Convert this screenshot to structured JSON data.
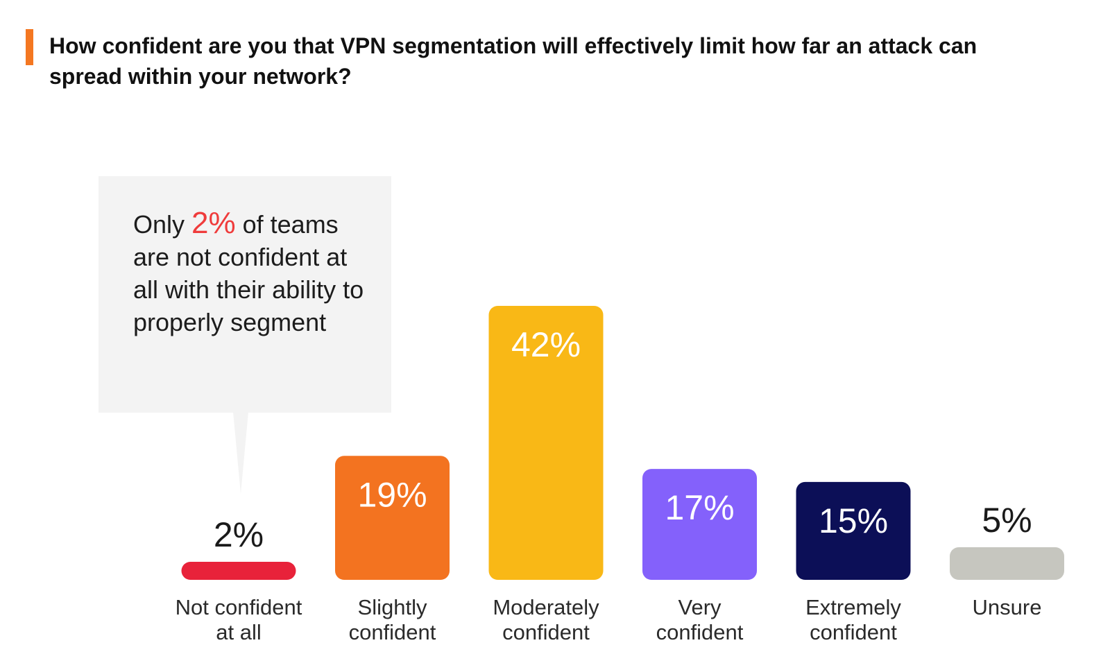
{
  "title": "How confident are you that VPN segmentation will effectively limit how far an attack can spread within your network?",
  "callout": {
    "before": "Only ",
    "highlight": "2%",
    "after": " of teams are not confident at all with their ability to properly segment"
  },
  "colors": {
    "accent": "#f47721",
    "highlight": "#ef3b3b",
    "callout_bg": "#f3f3f3"
  },
  "chart_data": {
    "type": "bar",
    "categories": [
      [
        "Not confident",
        "at all"
      ],
      [
        "Slightly",
        "confident"
      ],
      [
        "Moderately",
        "confident"
      ],
      [
        "Very",
        "confident"
      ],
      [
        "Extremely",
        "confident"
      ],
      [
        "Unsure"
      ]
    ],
    "values": [
      2,
      19,
      42,
      17,
      15,
      5
    ],
    "value_labels": [
      "2%",
      "19%",
      "42%",
      "17%",
      "15%",
      "5%"
    ],
    "colors": [
      "#e8223a",
      "#f37320",
      "#f9b816",
      "#8461fb",
      "#0c0f57",
      "#c6c6bf"
    ],
    "label_colors": [
      "#1a1a1a",
      "#ffffff",
      "#ffffff",
      "#ffffff",
      "#ffffff",
      "#1a1a1a"
    ],
    "label_inside": [
      false,
      true,
      true,
      true,
      true,
      false
    ],
    "ylim": [
      0,
      42
    ]
  }
}
